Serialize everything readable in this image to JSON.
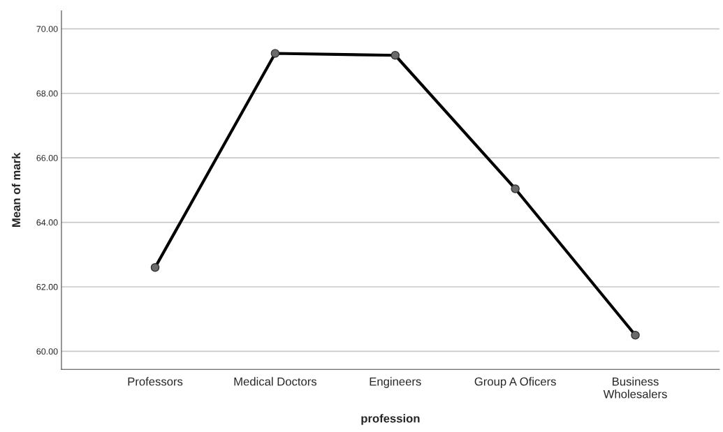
{
  "chart_data": {
    "type": "line",
    "xlabel": "profession",
    "ylabel": "Mean of mark",
    "categories": [
      "Professors",
      "Medical Doctors",
      "Engineers",
      "Group A Oficers",
      "Business\nWholesalers"
    ],
    "series": [
      {
        "color": "#000000",
        "values": [
          62.6,
          69.24,
          69.18,
          65.04,
          60.5
        ]
      }
    ],
    "ylim": [
      59.44,
      70.56
    ],
    "yticks": [
      {
        "value": 60,
        "label": "60.00"
      },
      {
        "value": 62,
        "label": "62.00"
      },
      {
        "value": 64,
        "label": "64.00"
      },
      {
        "value": 66,
        "label": "66.00"
      },
      {
        "value": 68,
        "label": "68.00"
      },
      {
        "value": 70,
        "label": "70.00"
      }
    ],
    "grid": "y",
    "marker": "circle",
    "line_style": "solid"
  }
}
